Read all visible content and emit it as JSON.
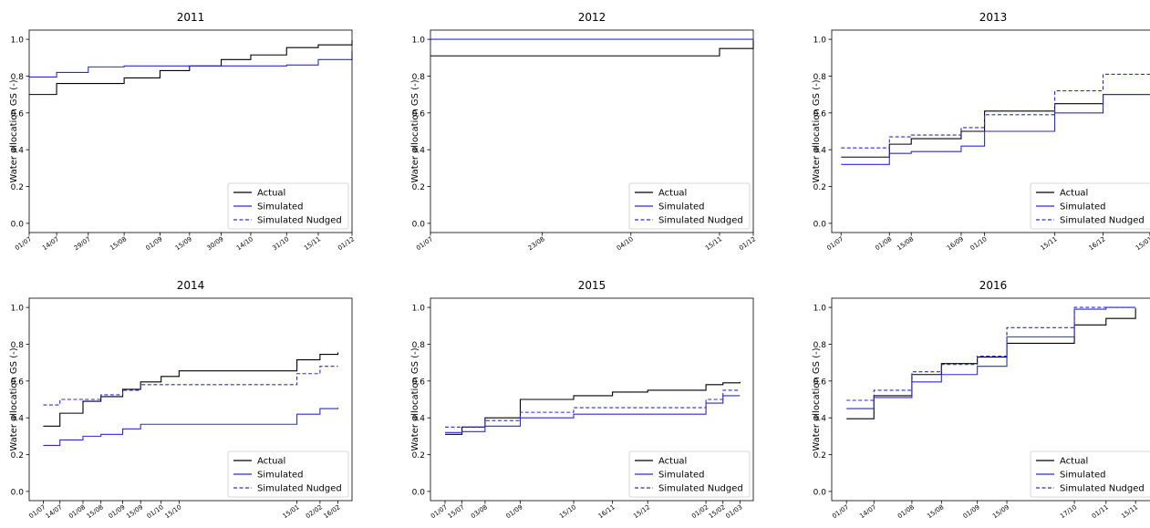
{
  "chart_data": [
    {
      "type": "line",
      "title": "2011",
      "ylabel": "Water allocation GS (-)",
      "xlim": [
        0,
        153
      ],
      "ylim": [
        -0.05,
        1.05
      ],
      "yticks": [
        "0.0",
        "0.2",
        "0.4",
        "0.6",
        "0.8",
        "1.0"
      ],
      "xticks": [
        {
          "label": "01/07",
          "x": 0
        },
        {
          "label": "14/07",
          "x": 13
        },
        {
          "label": "29/07",
          "x": 28
        },
        {
          "label": "15/08",
          "x": 45
        },
        {
          "label": "01/09",
          "x": 62
        },
        {
          "label": "15/09",
          "x": 76
        },
        {
          "label": "30/09",
          "x": 91
        },
        {
          "label": "14/10",
          "x": 105
        },
        {
          "label": "31/10",
          "x": 122
        },
        {
          "label": "15/11",
          "x": 137
        },
        {
          "label": "01/12",
          "x": 153
        }
      ],
      "legend": [
        "Actual",
        "Simulated",
        "Simulated Nudged"
      ],
      "legend_position": "lower-right",
      "series": [
        {
          "name": "Actual",
          "color": "#000000",
          "dash": "solid",
          "steps": [
            [
              0,
              0.7
            ],
            [
              13,
              0.76
            ],
            [
              45,
              0.79
            ],
            [
              62,
              0.83
            ],
            [
              76,
              0.855
            ],
            [
              91,
              0.89
            ],
            [
              105,
              0.915
            ],
            [
              122,
              0.955
            ],
            [
              137,
              0.97
            ],
            [
              153,
              0.995
            ]
          ]
        },
        {
          "name": "Simulated",
          "color": "#2a2ae0",
          "dash": "solid",
          "steps": [
            [
              0,
              0.795
            ],
            [
              13,
              0.82
            ],
            [
              28,
              0.85
            ],
            [
              45,
              0.855
            ],
            [
              122,
              0.86
            ],
            [
              137,
              0.89
            ],
            [
              153,
              0.935
            ]
          ]
        },
        {
          "name": "Simulated Nudged",
          "color": "#2a2ae0",
          "dash": "dashed",
          "steps": []
        }
      ]
    },
    {
      "type": "line",
      "title": "2012",
      "ylabel": "Water allocation GS (-)",
      "xlim": [
        0,
        153
      ],
      "ylim": [
        -0.05,
        1.05
      ],
      "yticks": [
        "0.0",
        "0.2",
        "0.4",
        "0.6",
        "0.8",
        "1.0"
      ],
      "xticks": [
        {
          "label": "01/07",
          "x": 0
        },
        {
          "label": "23/08",
          "x": 53
        },
        {
          "label": "04/10",
          "x": 95
        },
        {
          "label": "15/11",
          "x": 137
        },
        {
          "label": "01/12",
          "x": 153
        }
      ],
      "legend": [
        "Actual",
        "Simulated",
        "Simulated Nudged"
      ],
      "legend_position": "lower-right",
      "series": [
        {
          "name": "Actual",
          "color": "#000000",
          "dash": "solid",
          "steps": [
            [
              0,
              0.91
            ],
            [
              137,
              0.95
            ],
            [
              153,
              0.995
            ]
          ]
        },
        {
          "name": "Simulated",
          "color": "#2a2ae0",
          "dash": "solid",
          "steps": [
            [
              0,
              1.0
            ],
            [
              153,
              1.0
            ]
          ]
        },
        {
          "name": "Simulated Nudged",
          "color": "#2a2ae0",
          "dash": "dashed",
          "steps": []
        }
      ]
    },
    {
      "type": "line",
      "title": "2013",
      "ylabel": "Water allocation GS (-)",
      "xlim": [
        -6,
        201
      ],
      "ylim": [
        -0.05,
        1.05
      ],
      "yticks": [
        "0.0",
        "0.2",
        "0.4",
        "0.6",
        "0.8",
        "1.0"
      ],
      "xticks": [
        {
          "label": "01/07",
          "x": 0
        },
        {
          "label": "01/08",
          "x": 31
        },
        {
          "label": "15/08",
          "x": 45
        },
        {
          "label": "16/09",
          "x": 77
        },
        {
          "label": "01/10",
          "x": 92
        },
        {
          "label": "15/11",
          "x": 137
        },
        {
          "label": "16/12",
          "x": 168
        },
        {
          "label": "15/01",
          "x": 198
        }
      ],
      "legend": [
        "Actual",
        "Simulated",
        "Simulated Nudged"
      ],
      "legend_position": "lower-right",
      "series": [
        {
          "name": "Actual",
          "color": "#000000",
          "dash": "solid",
          "steps": [
            [
              0,
              0.36
            ],
            [
              31,
              0.43
            ],
            [
              45,
              0.46
            ],
            [
              77,
              0.5
            ],
            [
              92,
              0.61
            ],
            [
              137,
              0.65
            ],
            [
              168,
              0.7
            ],
            [
              198,
              0.7
            ]
          ]
        },
        {
          "name": "Simulated",
          "color": "#2a2ae0",
          "dash": "solid",
          "steps": [
            [
              0,
              0.32
            ],
            [
              31,
              0.38
            ],
            [
              45,
              0.39
            ],
            [
              77,
              0.42
            ],
            [
              92,
              0.5
            ],
            [
              137,
              0.6
            ],
            [
              168,
              0.7
            ],
            [
              198,
              0.7
            ]
          ]
        },
        {
          "name": "Simulated Nudged",
          "color": "#2a2ae0",
          "dash": "dashed",
          "steps": [
            [
              0,
              0.41
            ],
            [
              31,
              0.47
            ],
            [
              45,
              0.48
            ],
            [
              77,
              0.52
            ],
            [
              92,
              0.59
            ],
            [
              137,
              0.72
            ],
            [
              168,
              0.81
            ],
            [
              198,
              0.81
            ]
          ]
        }
      ]
    },
    {
      "type": "line",
      "title": "2014",
      "ylabel": "Water allocation GS (-)",
      "xlim": [
        -11,
        241
      ],
      "ylim": [
        -0.05,
        1.05
      ],
      "yticks": [
        "0.0",
        "0.2",
        "0.4",
        "0.6",
        "0.8",
        "1.0"
      ],
      "xticks": [
        {
          "label": "01/07",
          "x": 0
        },
        {
          "label": "14/07",
          "x": 13
        },
        {
          "label": "01/08",
          "x": 31
        },
        {
          "label": "15/08",
          "x": 45
        },
        {
          "label": "01/09",
          "x": 62
        },
        {
          "label": "15/09",
          "x": 76
        },
        {
          "label": "01/10",
          "x": 92
        },
        {
          "label": "15/10",
          "x": 106
        },
        {
          "label": "15/01",
          "x": 198
        },
        {
          "label": "02/02",
          "x": 216
        },
        {
          "label": "16/02",
          "x": 230
        }
      ],
      "legend": [
        "Actual",
        "Simulated",
        "Simulated Nudged"
      ],
      "legend_position": "lower-right",
      "series": [
        {
          "name": "Actual",
          "color": "#000000",
          "dash": "solid",
          "steps": [
            [
              0,
              0.355
            ],
            [
              13,
              0.425
            ],
            [
              31,
              0.49
            ],
            [
              45,
              0.515
            ],
            [
              62,
              0.555
            ],
            [
              76,
              0.595
            ],
            [
              92,
              0.625
            ],
            [
              106,
              0.655
            ],
            [
              198,
              0.715
            ],
            [
              216,
              0.745
            ],
            [
              230,
              0.755
            ]
          ]
        },
        {
          "name": "Simulated",
          "color": "#2a2ae0",
          "dash": "solid",
          "steps": [
            [
              0,
              0.25
            ],
            [
              13,
              0.28
            ],
            [
              31,
              0.3
            ],
            [
              45,
              0.31
            ],
            [
              62,
              0.34
            ],
            [
              76,
              0.365
            ],
            [
              198,
              0.42
            ],
            [
              216,
              0.45
            ],
            [
              230,
              0.455
            ]
          ]
        },
        {
          "name": "Simulated Nudged",
          "color": "#2a2ae0",
          "dash": "dashed",
          "steps": [
            [
              0,
              0.47
            ],
            [
              13,
              0.5
            ],
            [
              45,
              0.525
            ],
            [
              62,
              0.55
            ],
            [
              76,
              0.58
            ],
            [
              198,
              0.64
            ],
            [
              216,
              0.68
            ],
            [
              230,
              0.68
            ]
          ]
        }
      ]
    },
    {
      "type": "line",
      "title": "2015",
      "ylabel": "Water allocation GS (-)",
      "xlim": [
        -12,
        254
      ],
      "ylim": [
        -0.05,
        1.05
      ],
      "yticks": [
        "0.0",
        "0.2",
        "0.4",
        "0.6",
        "0.8",
        "1.0"
      ],
      "xticks": [
        {
          "label": "01/07",
          "x": 0
        },
        {
          "label": "15/07",
          "x": 14
        },
        {
          "label": "03/08",
          "x": 33
        },
        {
          "label": "01/09",
          "x": 62
        },
        {
          "label": "15/10",
          "x": 106
        },
        {
          "label": "16/11",
          "x": 138
        },
        {
          "label": "15/12",
          "x": 167
        },
        {
          "label": "01/02",
          "x": 215
        },
        {
          "label": "15/02",
          "x": 229
        },
        {
          "label": "01/03",
          "x": 243
        }
      ],
      "legend": [
        "Actual",
        "Simulated",
        "Simulated Nudged"
      ],
      "legend_position": "lower-right",
      "series": [
        {
          "name": "Actual",
          "color": "#000000",
          "dash": "solid",
          "steps": [
            [
              0,
              0.31
            ],
            [
              14,
              0.35
            ],
            [
              33,
              0.4
            ],
            [
              62,
              0.5
            ],
            [
              106,
              0.52
            ],
            [
              138,
              0.54
            ],
            [
              167,
              0.55
            ],
            [
              215,
              0.58
            ],
            [
              229,
              0.59
            ],
            [
              243,
              0.595
            ]
          ]
        },
        {
          "name": "Simulated",
          "color": "#2a2ae0",
          "dash": "solid",
          "steps": [
            [
              0,
              0.32
            ],
            [
              14,
              0.325
            ],
            [
              33,
              0.355
            ],
            [
              62,
              0.4
            ],
            [
              106,
              0.42
            ],
            [
              215,
              0.48
            ],
            [
              229,
              0.52
            ],
            [
              243,
              0.52
            ]
          ]
        },
        {
          "name": "Simulated Nudged",
          "color": "#2a2ae0",
          "dash": "dashed",
          "steps": [
            [
              0,
              0.35
            ],
            [
              33,
              0.385
            ],
            [
              62,
              0.43
            ],
            [
              106,
              0.455
            ],
            [
              215,
              0.5
            ],
            [
              229,
              0.55
            ],
            [
              243,
              0.55
            ]
          ]
        }
      ]
    },
    {
      "type": "line",
      "title": "2016",
      "ylabel": "Water allocation GS (-)",
      "xlim": [
        -7,
        146
      ],
      "ylim": [
        -0.05,
        1.05
      ],
      "yticks": [
        "0.0",
        "0.2",
        "0.4",
        "0.6",
        "0.8",
        "1.0"
      ],
      "xticks": [
        {
          "label": "01/07",
          "x": 0
        },
        {
          "label": "14/07",
          "x": 13
        },
        {
          "label": "01/08",
          "x": 31
        },
        {
          "label": "15/08",
          "x": 45
        },
        {
          "label": "01/09",
          "x": 62
        },
        {
          "label": "15/09",
          "x": 76
        },
        {
          "label": "17/10",
          "x": 108
        },
        {
          "label": "01/11",
          "x": 123
        },
        {
          "label": "15/11",
          "x": 137
        }
      ],
      "legend": [
        "Actual",
        "Simulated",
        "Simulated Nudged"
      ],
      "legend_position": "lower-right",
      "series": [
        {
          "name": "Actual",
          "color": "#000000",
          "dash": "solid",
          "steps": [
            [
              0,
              0.395
            ],
            [
              13,
              0.52
            ],
            [
              31,
              0.635
            ],
            [
              45,
              0.695
            ],
            [
              62,
              0.73
            ],
            [
              76,
              0.805
            ],
            [
              108,
              0.905
            ],
            [
              123,
              0.94
            ],
            [
              137,
              0.995
            ]
          ]
        },
        {
          "name": "Simulated",
          "color": "#2a2ae0",
          "dash": "solid",
          "steps": [
            [
              0,
              0.45
            ],
            [
              13,
              0.51
            ],
            [
              31,
              0.595
            ],
            [
              45,
              0.635
            ],
            [
              62,
              0.68
            ],
            [
              76,
              0.84
            ],
            [
              108,
              0.99
            ],
            [
              123,
              1.0
            ],
            [
              137,
              1.0
            ]
          ]
        },
        {
          "name": "Simulated Nudged",
          "color": "#2a2ae0",
          "dash": "dashed",
          "steps": [
            [
              0,
              0.495
            ],
            [
              13,
              0.55
            ],
            [
              31,
              0.65
            ],
            [
              45,
              0.69
            ],
            [
              62,
              0.735
            ],
            [
              76,
              0.89
            ],
            [
              108,
              1.0
            ],
            [
              137,
              1.0
            ]
          ]
        }
      ]
    }
  ]
}
